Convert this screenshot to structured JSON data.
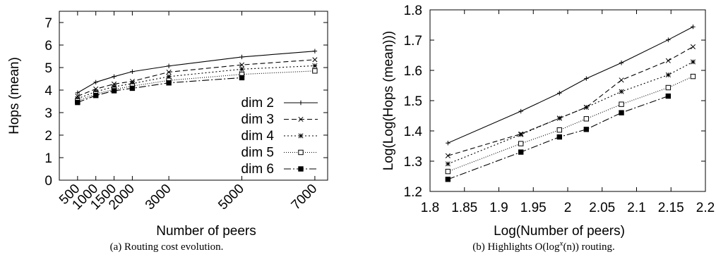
{
  "chart_data": [
    {
      "type": "line",
      "xlabel": "Number of peers",
      "ylabel": "Hops (mean)",
      "caption": "(a)  Routing cost evolution.",
      "x": [
        500,
        1000,
        1500,
        2000,
        3000,
        5000,
        7000
      ],
      "x_tick_labels": [
        "500",
        "1000",
        "1500",
        "2000",
        "3000",
        "5000",
        "7000"
      ],
      "xlim": [
        0,
        7350
      ],
      "y_ticks": [
        0,
        1,
        2,
        3,
        4,
        5,
        6,
        7
      ],
      "ylim": [
        0,
        7.5
      ],
      "legend_position": "bottom-right",
      "series": [
        {
          "name": "dim 2",
          "marker": "plus",
          "dash": "",
          "values": [
            3.88,
            4.35,
            4.6,
            4.82,
            5.07,
            5.47,
            5.73
          ]
        },
        {
          "name": "dim 3",
          "marker": "x",
          "dash": "7 4",
          "values": [
            3.73,
            4.05,
            4.27,
            4.39,
            4.8,
            5.12,
            5.35
          ]
        },
        {
          "name": "dim 4",
          "marker": "star",
          "dash": "2 3",
          "values": [
            3.62,
            3.93,
            4.15,
            4.29,
            4.6,
            4.93,
            5.08
          ]
        },
        {
          "name": "dim 5",
          "marker": "square-open",
          "dash": "1 2",
          "values": [
            3.52,
            3.83,
            4.03,
            4.18,
            4.43,
            4.7,
            4.85
          ]
        },
        {
          "name": "dim 6",
          "marker": "square-filled",
          "dash": "10 3 2 3",
          "values": [
            3.45,
            3.76,
            3.97,
            4.08,
            4.32,
            4.55,
            null
          ]
        }
      ]
    },
    {
      "type": "line",
      "xlabel": "Log(Number of peers)",
      "ylabel": "Log(Log(Hops (mean)))",
      "caption_prefix": "(b)  Highlights O(log",
      "caption_sup": "x",
      "caption_suffix": "(n)) routing.",
      "x": [
        1.826,
        1.932,
        1.988,
        2.027,
        2.078,
        2.146,
        2.182
      ],
      "x_ticks": [
        1.8,
        1.85,
        1.9,
        1.95,
        2.0,
        2.05,
        2.1,
        2.15,
        2.2
      ],
      "x_tick_labels": [
        "1.8",
        "1.85",
        "1.9",
        "1.95",
        "2",
        "2.05",
        "2.1",
        "2.15",
        "2.2"
      ],
      "xlim": [
        1.8,
        2.2
      ],
      "y_ticks": [
        1.2,
        1.3,
        1.4,
        1.5,
        1.6,
        1.7,
        1.8
      ],
      "y_tick_labels": [
        "1.2",
        "1.3",
        "1.4",
        "1.5",
        "1.6",
        "1.7",
        "1.8"
      ],
      "ylim": [
        1.2,
        1.8
      ],
      "series": [
        {
          "marker": "plus",
          "dash": "",
          "values": [
            1.36,
            1.465,
            1.525,
            1.573,
            1.625,
            1.701,
            1.744
          ]
        },
        {
          "marker": "x",
          "dash": "7 4",
          "values": [
            1.318,
            1.39,
            1.442,
            1.478,
            1.568,
            1.632,
            1.678
          ]
        },
        {
          "marker": "star",
          "dash": "2 3",
          "values": [
            1.291,
            1.388,
            1.442,
            1.478,
            1.53,
            1.585,
            1.628
          ]
        },
        {
          "marker": "square-open",
          "dash": "1 2",
          "values": [
            1.266,
            1.358,
            1.403,
            1.44,
            1.488,
            1.543,
            1.58
          ]
        },
        {
          "marker": "square-filled",
          "dash": "10 3 2 3",
          "values": [
            1.24,
            1.33,
            1.38,
            1.405,
            1.46,
            1.515,
            null
          ]
        }
      ]
    }
  ]
}
